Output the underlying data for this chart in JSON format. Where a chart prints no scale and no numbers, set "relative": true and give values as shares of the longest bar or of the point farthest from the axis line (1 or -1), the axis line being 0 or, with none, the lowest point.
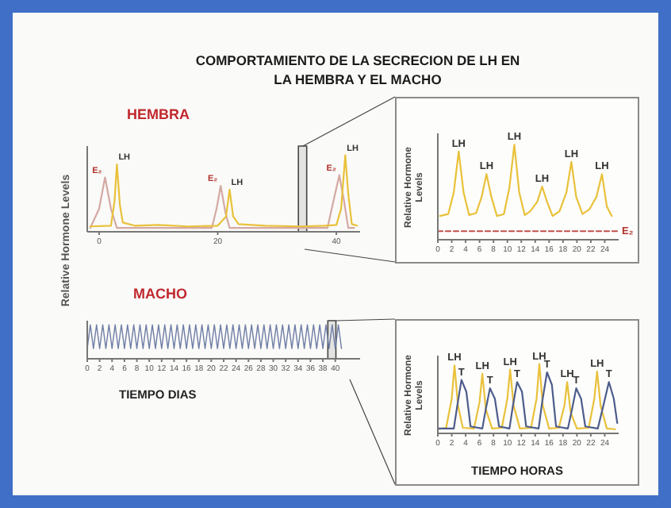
{
  "chart_data": [
    {
      "type": "line",
      "title": "COMPORTAMIENTO DE LA SECRECION DE LH EN LA HEMBRA Y EL MACHO",
      "subtitle": "HEMBRA",
      "ylabel": "Relative Hormone Levels",
      "relative": true,
      "xlim": [
        -2,
        44
      ],
      "xticks": [
        0,
        20,
        40
      ],
      "tick_labels": "x",
      "grid": false,
      "legend": false,
      "marker": "none",
      "series": [
        {
          "color": "#d4a9a4",
          "line_style": "solid",
          "x": [
            -1.5,
            0,
            1,
            2,
            3,
            19,
            19.8,
            20.5,
            21.3,
            22,
            38.5,
            39.5,
            40.5,
            41.3,
            42,
            43
          ],
          "values": [
            0.05,
            0.3,
            0.71,
            0.3,
            0.05,
            0.05,
            0.3,
            0.6,
            0.25,
            0.05,
            0.05,
            0.4,
            0.74,
            0.4,
            0.05,
            0.05
          ]
        },
        {
          "color": "#e9c13a",
          "line_style": "solid",
          "x": [
            -1.5,
            2,
            2.6,
            3,
            3.5,
            4,
            6,
            10,
            15,
            20,
            21.4,
            22,
            22.6,
            23.5,
            28,
            34,
            38,
            40,
            40.8,
            41.5,
            42,
            42.6,
            43.5
          ],
          "values": [
            0.07,
            0.08,
            0.4,
            0.88,
            0.35,
            0.12,
            0.08,
            0.09,
            0.07,
            0.08,
            0.2,
            0.55,
            0.2,
            0.1,
            0.08,
            0.07,
            0.08,
            0.09,
            0.3,
            1,
            0.5,
            0.1,
            0.08
          ]
        }
      ],
      "bands": [
        {
          "axis": "x",
          "from": 33.6,
          "to": 35,
          "color": "#444444"
        }
      ],
      "annotations": [
        {
          "text": "E₂",
          "x": 1,
          "y": 0.71
        },
        {
          "text": "LH",
          "x": 3,
          "y": 0.88
        },
        {
          "text": "E₂",
          "x": 20.5,
          "y": 0.6
        },
        {
          "text": "LH",
          "x": 22,
          "y": 0.55
        },
        {
          "text": "E₂",
          "x": 40.5,
          "y": 0.74
        },
        {
          "text": "LH",
          "x": 41.5,
          "y": 1
        }
      ]
    },
    {
      "type": "line",
      "ylabel": "Relative Hormone Levels",
      "relative": true,
      "xlim": [
        0,
        26
      ],
      "xticks": [
        0,
        2,
        4,
        6,
        8,
        10,
        12,
        14,
        16,
        18,
        20,
        22,
        24
      ],
      "tick_labels": "x",
      "grid": false,
      "legend": false,
      "marker": "none",
      "series": [
        {
          "color": "#e9c13a",
          "line_style": "solid",
          "x": [
            0.3,
            1.5,
            2.3,
            3,
            3.7,
            4.5,
            5.5,
            6.3,
            7,
            7.7,
            8.5,
            9.5,
            10.3,
            11,
            11.7,
            12.5,
            13.3,
            14.3,
            15,
            15.7,
            16.5,
            17.5,
            18.5,
            19.2,
            19.9,
            20.8,
            21.8,
            22.8,
            23.6,
            24.3,
            25
          ],
          "values": [
            0.25,
            0.27,
            0.5,
            0.93,
            0.5,
            0.26,
            0.28,
            0.45,
            0.69,
            0.45,
            0.25,
            0.27,
            0.55,
            1,
            0.5,
            0.26,
            0.3,
            0.4,
            0.56,
            0.4,
            0.25,
            0.3,
            0.5,
            0.82,
            0.45,
            0.27,
            0.32,
            0.45,
            0.69,
            0.35,
            0.25
          ]
        },
        {
          "color": "#c0504d",
          "line_style": "dashed",
          "x": [
            0,
            26
          ],
          "values": [
            0.09,
            0.09
          ]
        }
      ],
      "annotations": [
        {
          "text": "LH",
          "x": 3,
          "y": 0.93
        },
        {
          "text": "LH",
          "x": 7,
          "y": 0.69
        },
        {
          "text": "LH",
          "x": 11,
          "y": 1
        },
        {
          "text": "LH",
          "x": 15,
          "y": 0.56
        },
        {
          "text": "LH",
          "x": 19.2,
          "y": 0.82
        },
        {
          "text": "LH",
          "x": 23.6,
          "y": 0.69
        },
        {
          "text": "E₂",
          "x": 26,
          "y": 0.09
        }
      ]
    },
    {
      "type": "line",
      "subtitle": "MACHO",
      "xlabel": "TIEMPO DIAS",
      "relative": true,
      "xlim": [
        0,
        44
      ],
      "xticks": [
        0,
        2,
        4,
        6,
        8,
        10,
        12,
        14,
        16,
        18,
        20,
        22,
        24,
        26,
        28,
        30,
        32,
        34,
        36,
        38,
        40
      ],
      "tick_labels": "x",
      "grid": false,
      "legend": false,
      "marker": "none",
      "series": [
        {
          "color": "#6f7ea6",
          "line_style": "solid",
          "x": [
            0,
            0.5,
            1,
            1.5,
            2,
            2.5,
            3,
            3.5,
            4,
            4.5,
            5,
            5.5,
            6,
            6.5,
            7,
            7.5,
            8,
            8.5,
            9,
            9.5,
            10,
            10.5,
            11,
            11.5,
            12,
            12.5,
            13,
            13.5,
            14,
            14.5,
            15,
            15.5,
            16,
            16.5,
            17,
            17.5,
            18,
            18.5,
            19,
            19.5,
            20,
            20.5,
            21,
            21.5,
            22,
            22.5,
            23,
            23.5,
            24,
            24.5,
            25,
            25.5,
            26,
            26.5,
            27,
            27.5,
            28,
            28.5,
            29,
            29.5,
            30,
            30.5,
            31,
            31.5,
            32,
            32.5,
            33,
            33.5,
            34,
            34.5,
            35,
            35.5,
            36,
            36.5,
            37,
            37.5,
            38,
            38.5,
            39,
            39.5,
            40,
            40.5,
            41
          ],
          "values": [
            0.3,
            1,
            0.3,
            1,
            0.3,
            1,
            0.3,
            1,
            0.3,
            1,
            0.3,
            1,
            0.3,
            1,
            0.3,
            1,
            0.3,
            1,
            0.3,
            1,
            0.3,
            1,
            0.3,
            1,
            0.3,
            1,
            0.3,
            1,
            0.3,
            1,
            0.3,
            1,
            0.3,
            1,
            0.3,
            1,
            0.3,
            1,
            0.3,
            1,
            0.3,
            1,
            0.3,
            1,
            0.3,
            1,
            0.3,
            1,
            0.3,
            1,
            0.3,
            1,
            0.3,
            1,
            0.3,
            1,
            0.3,
            1,
            0.3,
            1,
            0.3,
            1,
            0.3,
            1,
            0.3,
            1,
            0.3,
            1,
            0.3,
            1,
            0.3,
            1,
            0.3,
            1,
            0.3,
            1,
            0.3,
            1,
            0.3,
            1,
            0.3,
            1,
            0.3
          ]
        }
      ],
      "bands": [
        {
          "axis": "x",
          "from": 38.8,
          "to": 40.1,
          "color": "#444444"
        }
      ]
    },
    {
      "type": "line",
      "ylabel": "Relative Hormone Levels",
      "xlabel": "TIEMPO HORAS",
      "relative": true,
      "xlim": [
        0,
        26
      ],
      "xticks": [
        0,
        2,
        4,
        6,
        8,
        10,
        12,
        14,
        16,
        18,
        20,
        22,
        24
      ],
      "tick_labels": "x",
      "grid": false,
      "legend": false,
      "marker": "none",
      "series": [
        {
          "color": "#e9c13a",
          "line_style": "solid",
          "x": [
            0,
            1.2,
            2,
            2.4,
            2.9,
            3.6,
            5.2,
            6,
            6.4,
            6.9,
            7.8,
            9.2,
            10,
            10.4,
            10.9,
            11.8,
            13.4,
            14.2,
            14.6,
            15.1,
            16,
            17.4,
            18.2,
            18.6,
            19.1,
            20,
            21.7,
            22.5,
            22.9,
            23.4,
            24.3,
            25.5
          ],
          "values": [
            0.06,
            0.08,
            0.5,
            0.98,
            0.4,
            0.08,
            0.07,
            0.45,
            0.86,
            0.35,
            0.07,
            0.08,
            0.5,
            0.92,
            0.4,
            0.07,
            0.08,
            0.5,
            1,
            0.4,
            0.07,
            0.08,
            0.4,
            0.74,
            0.3,
            0.07,
            0.08,
            0.5,
            0.89,
            0.4,
            0.07,
            0.06
          ]
        },
        {
          "color": "#4d5d8c",
          "line_style": "solid",
          "x": [
            0,
            2.3,
            2.8,
            3.4,
            4.1,
            4.7,
            6.4,
            6.9,
            7.5,
            8.2,
            8.8,
            10.3,
            10.8,
            11.4,
            12.1,
            12.7,
            14.5,
            15,
            15.7,
            16.4,
            17,
            18.7,
            19.3,
            19.9,
            20.6,
            21.2,
            23,
            23.8,
            24.6,
            25.3,
            25.8
          ],
          "values": [
            0.07,
            0.07,
            0.4,
            0.77,
            0.6,
            0.1,
            0.07,
            0.35,
            0.65,
            0.5,
            0.1,
            0.07,
            0.4,
            0.74,
            0.6,
            0.1,
            0.07,
            0.45,
            0.88,
            0.7,
            0.1,
            0.07,
            0.35,
            0.65,
            0.5,
            0.1,
            0.07,
            0.4,
            0.74,
            0.5,
            0.15
          ]
        }
      ],
      "annotations": [
        {
          "text": "LH",
          "x": 2.4,
          "y": 0.98
        },
        {
          "text": "T",
          "x": 3.4,
          "y": 0.77
        },
        {
          "text": "LH",
          "x": 6.4,
          "y": 0.86
        },
        {
          "text": "T",
          "x": 7.5,
          "y": 0.65
        },
        {
          "text": "LH",
          "x": 10.4,
          "y": 0.92
        },
        {
          "text": "T",
          "x": 11.4,
          "y": 0.74
        },
        {
          "text": "LH",
          "x": 14.6,
          "y": 1
        },
        {
          "text": "T",
          "x": 15.7,
          "y": 0.88
        },
        {
          "text": "LH",
          "x": 18.6,
          "y": 0.74
        },
        {
          "text": "T",
          "x": 19.9,
          "y": 0.65
        },
        {
          "text": "LH",
          "x": 22.9,
          "y": 0.89
        },
        {
          "text": "T",
          "x": 24.6,
          "y": 0.74
        }
      ]
    }
  ]
}
